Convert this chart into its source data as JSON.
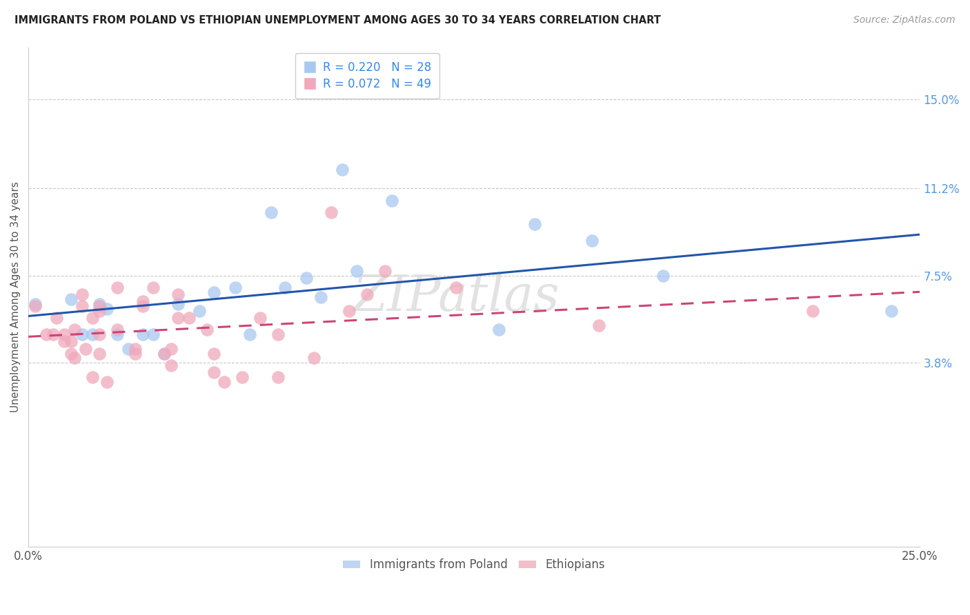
{
  "title": "IMMIGRANTS FROM POLAND VS ETHIOPIAN UNEMPLOYMENT AMONG AGES 30 TO 34 YEARS CORRELATION CHART",
  "source": "Source: ZipAtlas.com",
  "ylabel": "Unemployment Among Ages 30 to 34 years",
  "xlim": [
    0.0,
    0.25
  ],
  "ylim": [
    -0.04,
    0.172
  ],
  "xticks": [
    0.0,
    0.05,
    0.1,
    0.15,
    0.2,
    0.25
  ],
  "xticklabels": [
    "0.0%",
    "",
    "",
    "",
    "",
    "25.0%"
  ],
  "right_yticks": [
    0.038,
    0.075,
    0.112,
    0.15
  ],
  "right_yticklabels": [
    "3.8%",
    "7.5%",
    "11.2%",
    "15.0%"
  ],
  "background_color": "#ffffff",
  "grid_color": "#c8c8c8",
  "blue_color": "#a8c8f0",
  "pink_color": "#f0a8bb",
  "blue_line_color": "#2255aa",
  "pink_line_color": "#cc4477",
  "legend_R1": "R = 0.220",
  "legend_N1": "N = 28",
  "legend_R2": "R = 0.072",
  "legend_N2": "N = 49",
  "legend_label1": "Immigrants from Poland",
  "legend_label2": "Ethiopians",
  "watermark": "ZIPatlas",
  "blue_x": [
    0.002,
    0.012,
    0.015,
    0.018,
    0.02,
    0.022,
    0.025,
    0.028,
    0.032,
    0.035,
    0.038,
    0.042,
    0.048,
    0.052,
    0.058,
    0.062,
    0.068,
    0.072,
    0.078,
    0.082,
    0.088,
    0.092,
    0.102,
    0.132,
    0.142,
    0.158,
    0.178,
    0.242
  ],
  "blue_y": [
    0.063,
    0.065,
    0.05,
    0.05,
    0.063,
    0.061,
    0.05,
    0.044,
    0.05,
    0.05,
    0.042,
    0.063,
    0.06,
    0.068,
    0.07,
    0.05,
    0.102,
    0.07,
    0.074,
    0.066,
    0.12,
    0.077,
    0.107,
    0.052,
    0.097,
    0.09,
    0.075,
    0.06
  ],
  "pink_x": [
    0.002,
    0.005,
    0.007,
    0.008,
    0.01,
    0.01,
    0.012,
    0.012,
    0.013,
    0.013,
    0.015,
    0.015,
    0.016,
    0.018,
    0.018,
    0.02,
    0.02,
    0.02,
    0.02,
    0.022,
    0.025,
    0.025,
    0.03,
    0.03,
    0.032,
    0.032,
    0.035,
    0.038,
    0.04,
    0.04,
    0.042,
    0.042,
    0.045,
    0.05,
    0.052,
    0.052,
    0.055,
    0.06,
    0.065,
    0.07,
    0.07,
    0.08,
    0.085,
    0.09,
    0.095,
    0.1,
    0.12,
    0.16,
    0.22
  ],
  "pink_y": [
    0.062,
    0.05,
    0.05,
    0.057,
    0.047,
    0.05,
    0.047,
    0.042,
    0.052,
    0.04,
    0.067,
    0.062,
    0.044,
    0.057,
    0.032,
    0.062,
    0.06,
    0.05,
    0.042,
    0.03,
    0.07,
    0.052,
    0.044,
    0.042,
    0.062,
    0.064,
    0.07,
    0.042,
    0.044,
    0.037,
    0.067,
    0.057,
    0.057,
    0.052,
    0.042,
    0.034,
    0.03,
    0.032,
    0.057,
    0.032,
    0.05,
    0.04,
    0.102,
    0.06,
    0.067,
    0.077,
    0.07,
    0.054,
    0.06
  ]
}
